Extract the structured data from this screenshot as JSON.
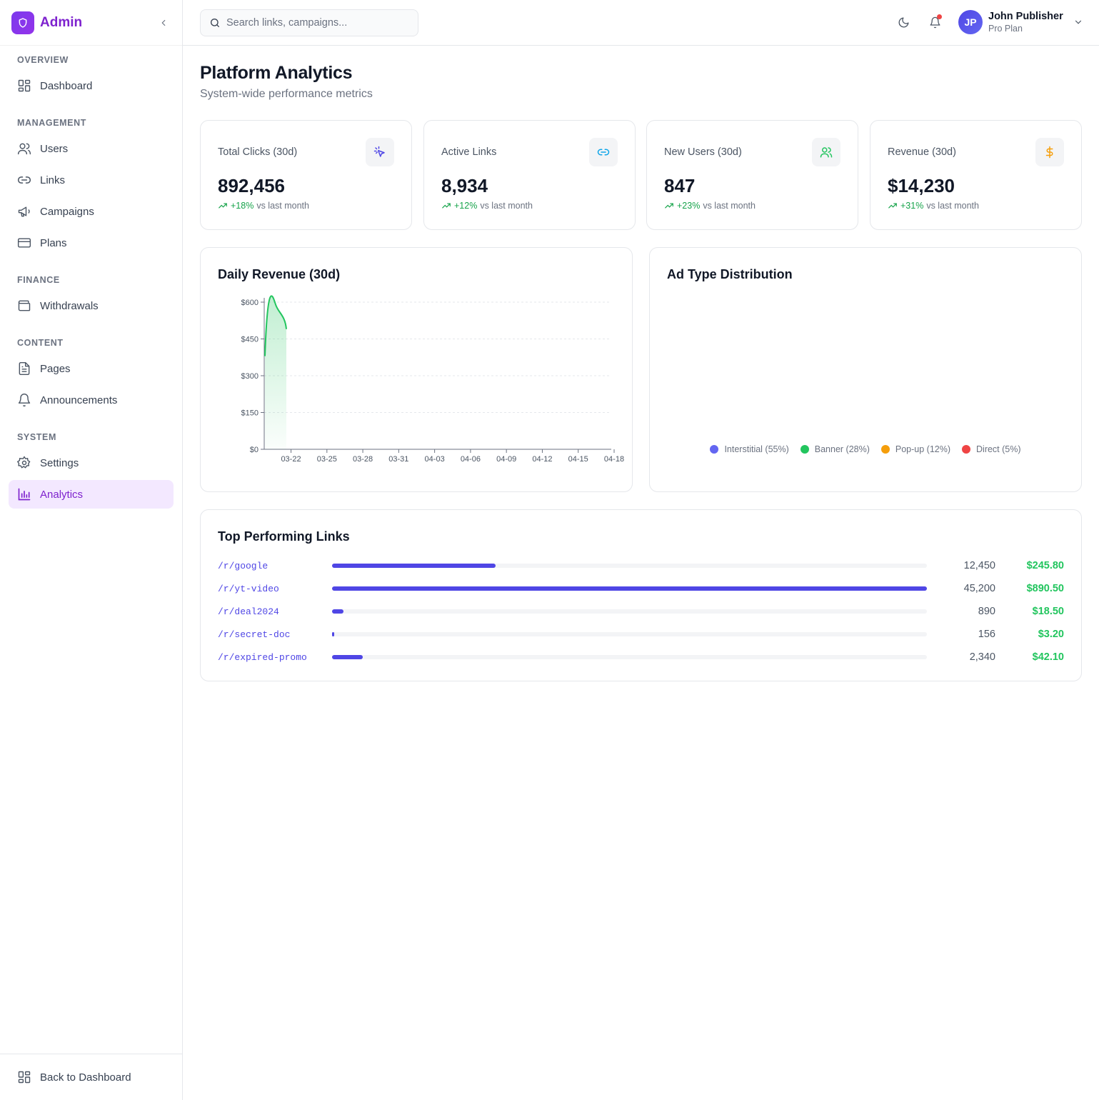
{
  "brand": {
    "name": "Admin"
  },
  "sidebar": {
    "sections": [
      {
        "label": "OVERVIEW"
      },
      {
        "label": "MANAGEMENT"
      },
      {
        "label": "FINANCE"
      },
      {
        "label": "CONTENT"
      },
      {
        "label": "SYSTEM"
      }
    ],
    "items": [
      {
        "label": "Dashboard",
        "icon": "grid-icon"
      },
      {
        "label": "Users",
        "icon": "users-icon"
      },
      {
        "label": "Links",
        "icon": "link-icon"
      },
      {
        "label": "Campaigns",
        "icon": "megaphone-icon"
      },
      {
        "label": "Plans",
        "icon": "credit-card-icon"
      },
      {
        "label": "Withdrawals",
        "icon": "wallet-icon"
      },
      {
        "label": "Pages",
        "icon": "file-text-icon"
      },
      {
        "label": "Announcements",
        "icon": "bell-icon"
      },
      {
        "label": "Settings",
        "icon": "gear-icon"
      },
      {
        "label": "Analytics",
        "icon": "bar-chart-icon",
        "active": true
      }
    ],
    "back_label": "Back to Dashboard"
  },
  "topbar": {
    "search_placeholder": "Search links, campaigns...",
    "user": {
      "initials": "JP",
      "name": "John Publisher",
      "plan": "Pro Plan"
    }
  },
  "page": {
    "title": "Platform Analytics",
    "subtitle": "System-wide performance metrics"
  },
  "stats": [
    {
      "label": "Total Clicks (30d)",
      "value": "892,456",
      "change": "+18%",
      "suffix": "vs last month",
      "icon": "cursor-click-icon",
      "icon_color": "#4f46e5"
    },
    {
      "label": "Active Links",
      "value": "8,934",
      "change": "+12%",
      "suffix": "vs last month",
      "icon": "link-icon",
      "icon_color": "#0ea5e9"
    },
    {
      "label": "New Users (30d)",
      "value": "847",
      "change": "+23%",
      "suffix": "vs last month",
      "icon": "users-icon",
      "icon_color": "#22c55e"
    },
    {
      "label": "Revenue (30d)",
      "value": "$14,230",
      "change": "+31%",
      "suffix": "vs last month",
      "icon": "dollar-icon",
      "icon_color": "#f59e0b"
    }
  ],
  "revenue_chart": {
    "title": "Daily Revenue (30d)"
  },
  "ad_chart": {
    "title": "Ad Type Distribution"
  },
  "top_links": {
    "title": "Top Performing Links",
    "rows": [
      {
        "slug": "/r/google",
        "clicks": "12,450",
        "revenue": "$245.80",
        "share": 0.2754
      },
      {
        "slug": "/r/yt-video",
        "clicks": "45,200",
        "revenue": "$890.50",
        "share": 1.0
      },
      {
        "slug": "/r/deal2024",
        "clicks": "890",
        "revenue": "$18.50",
        "share": 0.0197
      },
      {
        "slug": "/r/secret-doc",
        "clicks": "156",
        "revenue": "$3.20",
        "share": 0.0035
      },
      {
        "slug": "/r/expired-promo",
        "clicks": "2,340",
        "revenue": "$42.10",
        "share": 0.0518
      }
    ]
  },
  "colors": {
    "accent": "#7e22ce",
    "primary": "#4f46e5",
    "positive": "#22c55e"
  },
  "chart_data": [
    {
      "type": "area",
      "title": "Daily Revenue (30d)",
      "x": [
        "03-20",
        "03-21",
        "03-22"
      ],
      "y": [
        380,
        590,
        490
      ],
      "x_ticks": [
        "03-22",
        "03-25",
        "03-28",
        "03-31",
        "04-03",
        "04-06",
        "04-09",
        "04-12",
        "04-15",
        "04-18"
      ],
      "y_ticks": [
        "$0",
        "$150",
        "$300",
        "$450",
        "$600"
      ],
      "ylim": [
        0,
        600
      ],
      "grid": true,
      "color": "#22c55e"
    },
    {
      "type": "pie",
      "title": "Ad Type Distribution",
      "legend": "bottom",
      "slices": [
        {
          "name": "Interstitial (55%)",
          "value": 55,
          "color": "#6366f1"
        },
        {
          "name": "Banner (28%)",
          "value": 28,
          "color": "#22c55e"
        },
        {
          "name": "Pop-up (12%)",
          "value": 12,
          "color": "#f59e0b"
        },
        {
          "name": "Direct (5%)",
          "value": 5,
          "color": "#ef4444"
        }
      ]
    }
  ]
}
